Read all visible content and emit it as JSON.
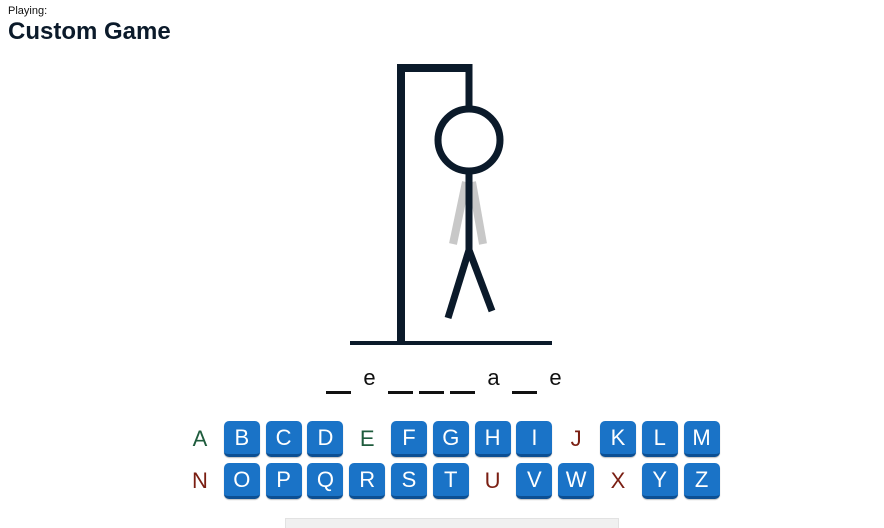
{
  "header": {
    "playing_label": "Playing:",
    "title": "Custom Game"
  },
  "colors": {
    "ink": "#0b1a2a",
    "key_bg": "#1a73c7",
    "key_text": "#ffffff",
    "correct_letter": "#1f5c3d",
    "wrong_letter": "#7a1e12",
    "ghost_limb": "#c8c8c8"
  },
  "word": [
    "",
    "e",
    "",
    "",
    "",
    "a",
    "",
    "e"
  ],
  "keyboard": {
    "rows": [
      [
        {
          "letter": "A",
          "state": "correct"
        },
        {
          "letter": "B",
          "state": "available"
        },
        {
          "letter": "C",
          "state": "available"
        },
        {
          "letter": "D",
          "state": "available"
        },
        {
          "letter": "E",
          "state": "correct"
        },
        {
          "letter": "F",
          "state": "available"
        },
        {
          "letter": "G",
          "state": "available"
        },
        {
          "letter": "H",
          "state": "available"
        },
        {
          "letter": "I",
          "state": "available"
        },
        {
          "letter": "J",
          "state": "wrong"
        },
        {
          "letter": "K",
          "state": "available"
        },
        {
          "letter": "L",
          "state": "available"
        },
        {
          "letter": "M",
          "state": "available"
        }
      ],
      [
        {
          "letter": "N",
          "state": "wrong"
        },
        {
          "letter": "O",
          "state": "available"
        },
        {
          "letter": "P",
          "state": "available"
        },
        {
          "letter": "Q",
          "state": "available"
        },
        {
          "letter": "R",
          "state": "available"
        },
        {
          "letter": "S",
          "state": "available"
        },
        {
          "letter": "T",
          "state": "available"
        },
        {
          "letter": "U",
          "state": "wrong"
        },
        {
          "letter": "V",
          "state": "available"
        },
        {
          "letter": "W",
          "state": "available"
        },
        {
          "letter": "X",
          "state": "wrong"
        },
        {
          "letter": "Y",
          "state": "available"
        },
        {
          "letter": "Z",
          "state": "available"
        }
      ]
    ]
  }
}
